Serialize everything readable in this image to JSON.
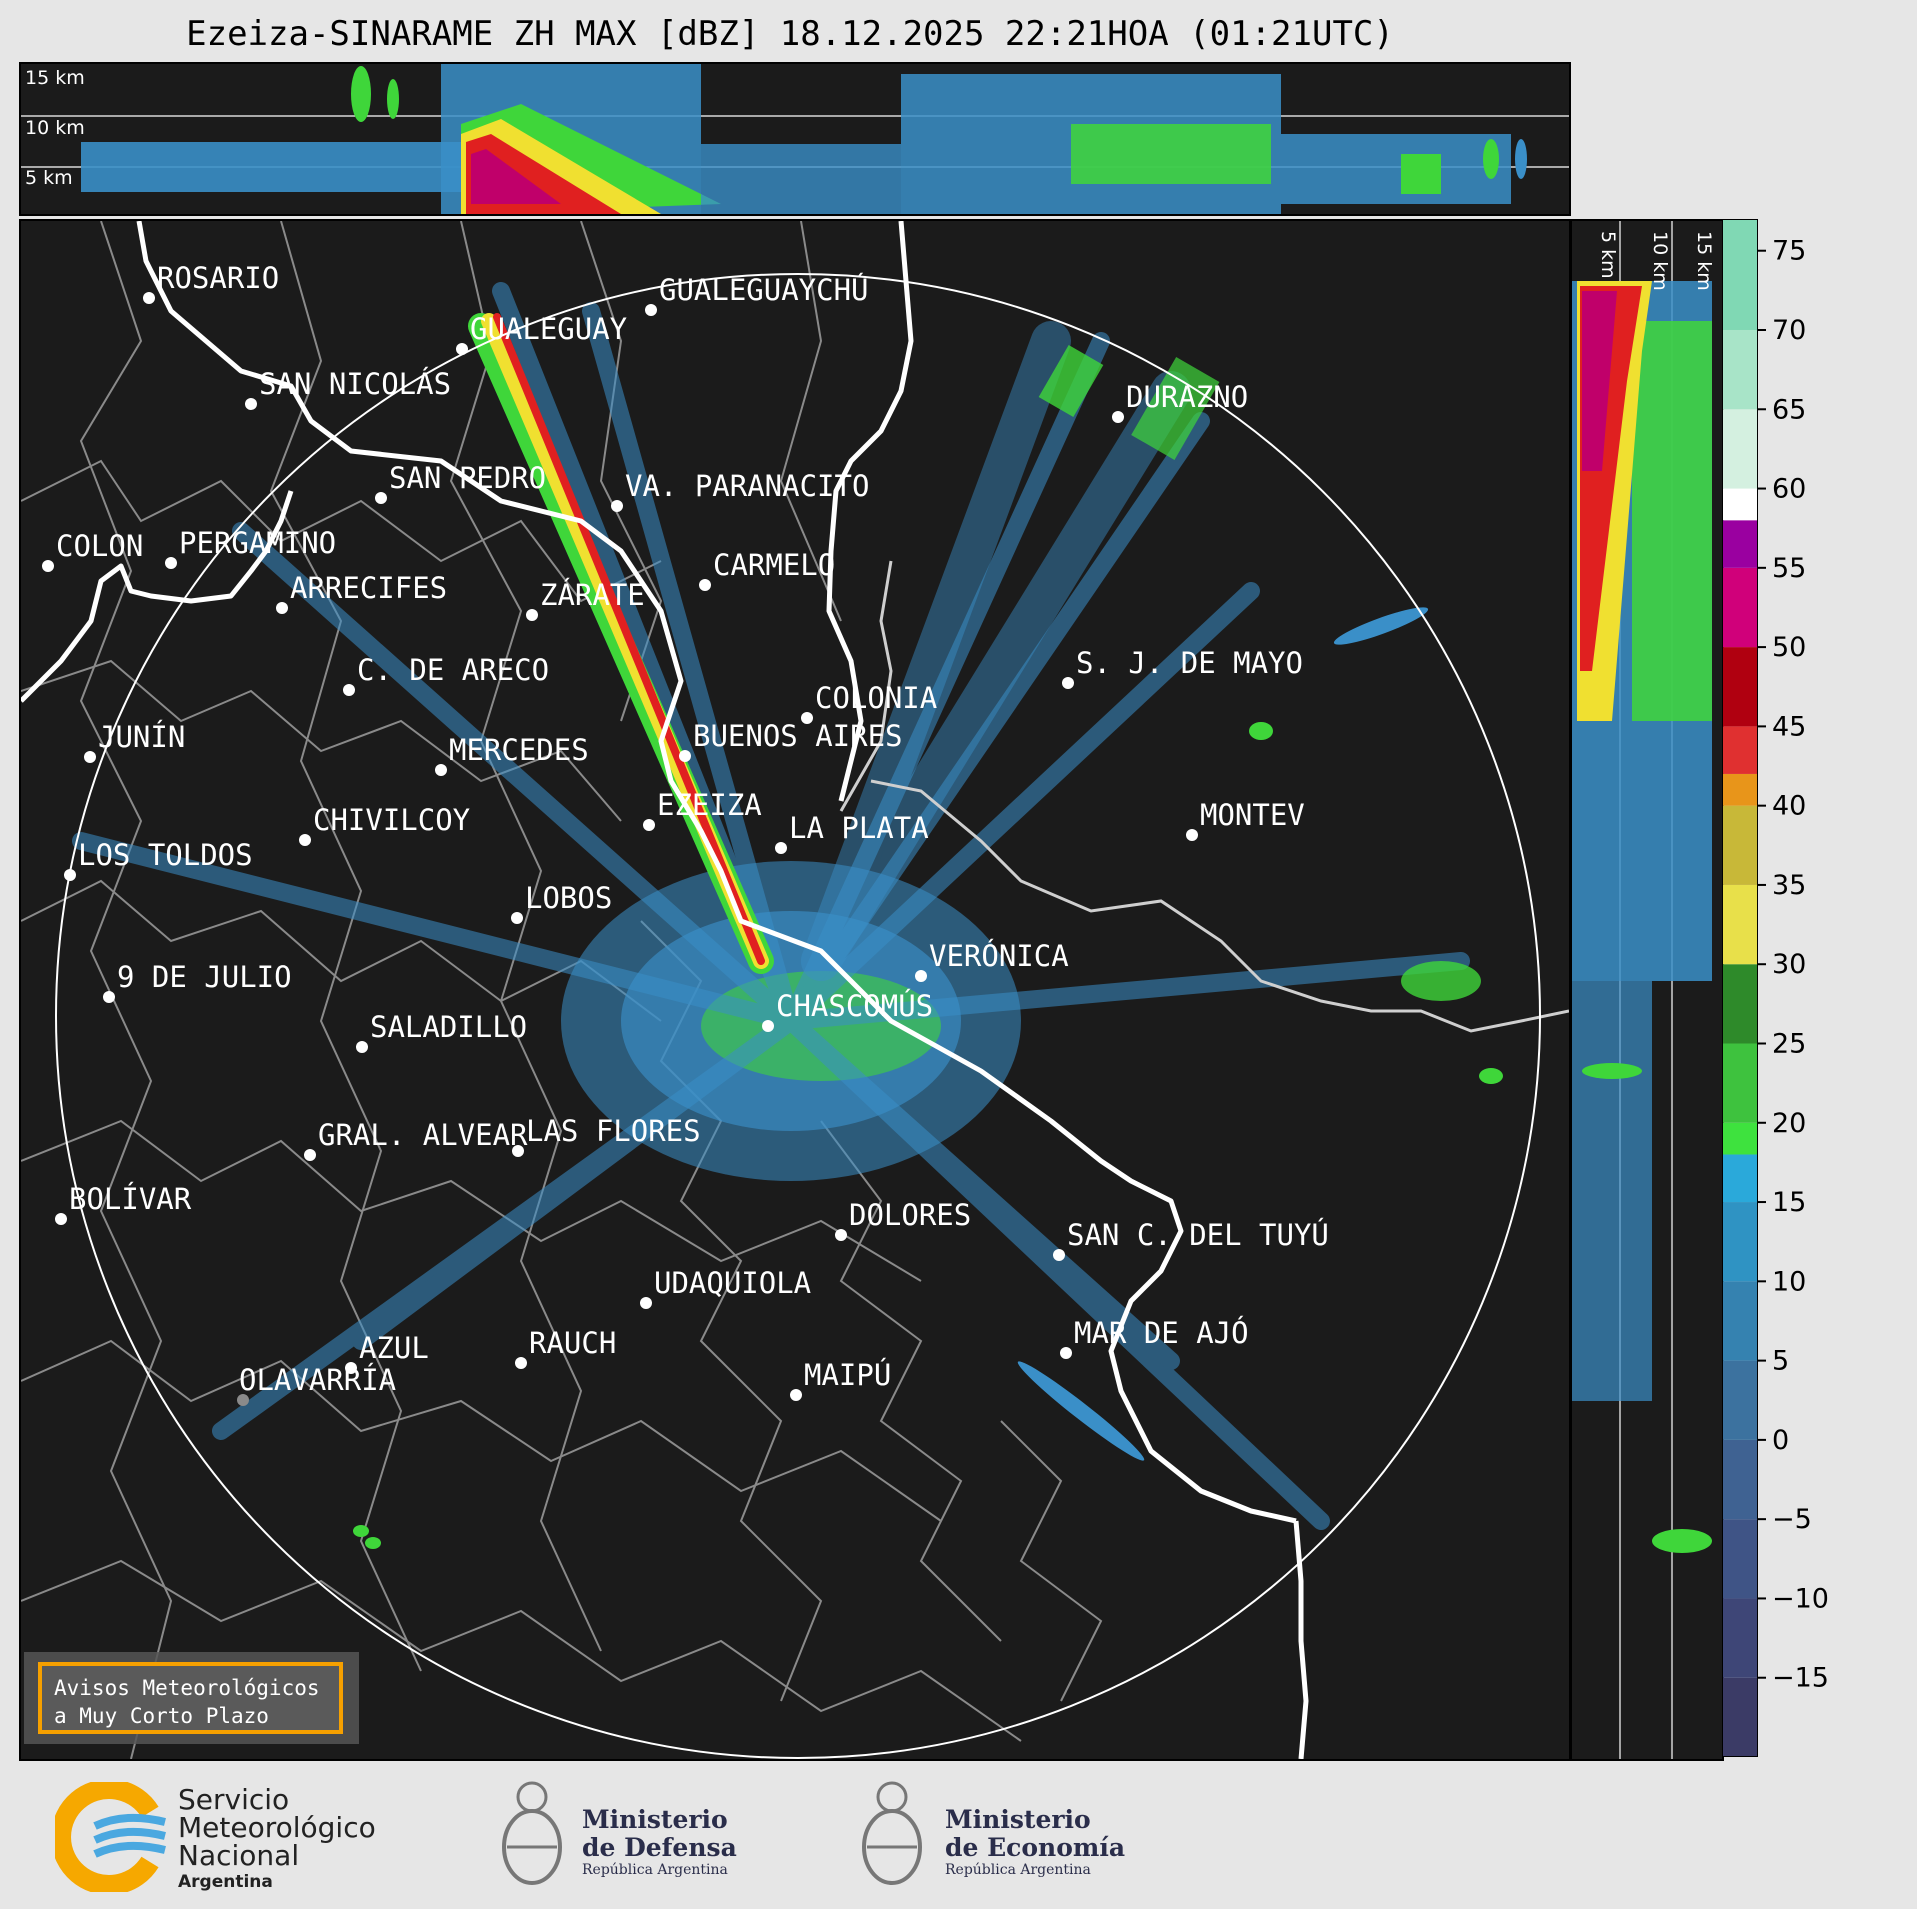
{
  "title": "Ezeiza-SINARAME ZH MAX [dBZ] 18.12.2025 22:21HOA (01:21UTC)",
  "top_panel": {
    "altitudes": [
      "15 km",
      "10 km",
      "5 km"
    ]
  },
  "side_panel": {
    "altitudes": [
      "5 km",
      "10 km",
      "15 km"
    ]
  },
  "colorbar": {
    "ticks": [
      "75",
      "70",
      "65",
      "60",
      "55",
      "50",
      "45",
      "40",
      "35",
      "30",
      "25",
      "20",
      "15",
      "10",
      "5",
      "0",
      "−5",
      "−10",
      "−15"
    ],
    "range": [
      -20,
      77
    ],
    "units": "dBZ"
  },
  "cities": [
    {
      "name": "ROSARIO"
    },
    {
      "name": "GUALEGUAYCHÚ"
    },
    {
      "name": "GUALEGUAY"
    },
    {
      "name": "SAN NICOLÁS"
    },
    {
      "name": "DURAZNO"
    },
    {
      "name": "SAN PEDRO"
    },
    {
      "name": "VA. PARANACITO"
    },
    {
      "name": "COLON"
    },
    {
      "name": "PERGAMINO"
    },
    {
      "name": "CARMELO"
    },
    {
      "name": "ARRECIFES"
    },
    {
      "name": "ZÁRATE"
    },
    {
      "name": "S. J. DE MAYO"
    },
    {
      "name": "C. DE ARECO"
    },
    {
      "name": "COLONIA"
    },
    {
      "name": "JUNÍN"
    },
    {
      "name": "BUENOS AIRES"
    },
    {
      "name": "MERCEDES"
    },
    {
      "name": "EZEIZA"
    },
    {
      "name": "MONTEV"
    },
    {
      "name": "CHIVILCOY"
    },
    {
      "name": "LA PLATA"
    },
    {
      "name": "LOS TOLDOS"
    },
    {
      "name": "LOBOS"
    },
    {
      "name": "VERÓNICA"
    },
    {
      "name": "9 DE JULIO"
    },
    {
      "name": "CHASCOMÚS"
    },
    {
      "name": "SALADILLO"
    },
    {
      "name": "GRAL. ALVEAR"
    },
    {
      "name": "LAS FLORES"
    },
    {
      "name": "BOLÍVAR"
    },
    {
      "name": "DOLORES"
    },
    {
      "name": "SAN C. DEL TUYÚ"
    },
    {
      "name": "UDAQUIOLA"
    },
    {
      "name": "MAR DE AJÓ"
    },
    {
      "name": "AZUL"
    },
    {
      "name": "RAUCH"
    },
    {
      "name": "OLAVARRÍA"
    },
    {
      "name": "MAIPÚ"
    }
  ],
  "avisos": {
    "line1": "Avisos Meteorológicos",
    "line2": "a Muy Corto Plazo"
  },
  "logos": {
    "smn": {
      "line1": "Servicio",
      "line2": "Meteorológico",
      "line3": "Nacional",
      "sub": "Argentina"
    },
    "defensa": {
      "line1": "Ministerio",
      "line2": "de Defensa",
      "sub": "República Argentina"
    },
    "economia": {
      "line1": "Ministerio",
      "line2": "de Economía",
      "sub": "República Argentina"
    }
  },
  "colors": {
    "background": "#1b1b1b",
    "range_ring": "#ffffff",
    "river": "#ffffff",
    "borders": "#8a8a8a",
    "echo_light": "#3a8fc8",
    "echo_medium": "#3fd63a",
    "echo_strong": "#e02020",
    "accent": "#f6a000"
  }
}
